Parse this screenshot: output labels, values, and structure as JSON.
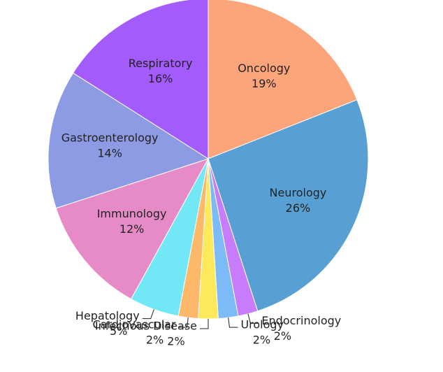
{
  "chart_data": {
    "type": "pie",
    "categories": [
      "Oncology",
      "Neurology",
      "Endocrinology",
      "Urology",
      "Infectious Disease",
      "Cardiovascular",
      "Hepatology",
      "Immunology",
      "Gastroenterology",
      "Respiratory"
    ],
    "values": [
      19,
      26,
      2,
      2,
      2,
      2,
      5,
      12,
      14,
      16
    ],
    "value_labels": [
      "19%",
      "26%",
      "2%",
      "2%",
      "2%",
      "2%",
      "5%",
      "12%",
      "14%",
      "16%"
    ],
    "colors": [
      "#fca57b",
      "#58a0d3",
      "#c77dfb",
      "#7dbaf8",
      "#fde95a",
      "#fdb86a",
      "#72e8f6",
      "#e68bc8",
      "#8c9be3",
      "#a35cfb"
    ]
  }
}
